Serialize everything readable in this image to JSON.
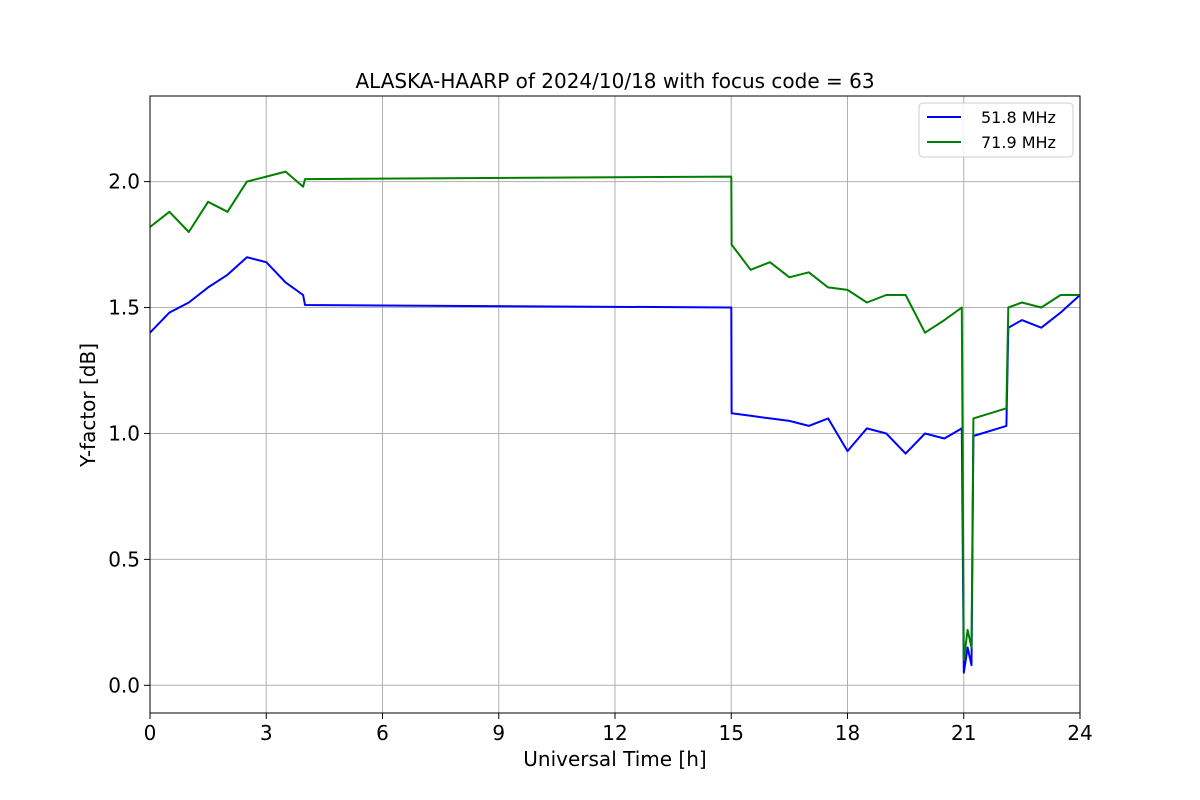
{
  "chart_data": {
    "type": "line",
    "title": "ALASKA-HAARP of 2024/10/18 with focus code = 63",
    "xlabel": "Universal Time [h]",
    "ylabel": "Y-factor [dB]",
    "xlim": [
      0,
      24
    ],
    "ylim": [
      -0.11,
      2.34
    ],
    "xticks": [
      0,
      3,
      6,
      9,
      12,
      15,
      18,
      21,
      24
    ],
    "xtick_labels": [
      "0",
      "3",
      "6",
      "9",
      "12",
      "15",
      "18",
      "21",
      "24"
    ],
    "yticks": [
      0.0,
      0.5,
      1.0,
      1.5,
      2.0
    ],
    "ytick_labels": [
      "0.0",
      "0.5",
      "1.0",
      "1.5",
      "2.0"
    ],
    "grid": true,
    "legend_position": "top-right",
    "series": [
      {
        "name": "51.8 MHz",
        "color": "#0000ff",
        "x": [
          0,
          0.5,
          1.0,
          1.5,
          2.0,
          2.5,
          3.0,
          3.5,
          3.95,
          4.0,
          15.0,
          15.01,
          15.5,
          16.0,
          16.5,
          17.0,
          17.5,
          18.0,
          18.5,
          19.0,
          19.5,
          20.0,
          20.5,
          20.95,
          21.0,
          21.1,
          21.2,
          21.25,
          22.1,
          22.15,
          22.5,
          23.0,
          23.5,
          24.0
        ],
        "values": [
          1.4,
          1.48,
          1.52,
          1.58,
          1.63,
          1.7,
          1.68,
          1.6,
          1.55,
          1.51,
          1.5,
          1.08,
          1.07,
          1.06,
          1.05,
          1.03,
          1.06,
          0.93,
          1.02,
          1.0,
          0.92,
          1.0,
          0.98,
          1.02,
          0.05,
          0.15,
          0.08,
          0.99,
          1.03,
          1.42,
          1.45,
          1.42,
          1.48,
          1.55
        ]
      },
      {
        "name": "71.9 MHz",
        "color": "#008000",
        "x": [
          0,
          0.5,
          1.0,
          1.5,
          2.0,
          2.5,
          3.0,
          3.5,
          3.95,
          4.0,
          15.0,
          15.01,
          15.5,
          16.0,
          16.5,
          17.0,
          17.5,
          18.0,
          18.5,
          19.0,
          19.5,
          20.0,
          20.5,
          20.95,
          21.0,
          21.1,
          21.2,
          21.25,
          22.1,
          22.15,
          22.5,
          23.0,
          23.5,
          24.0
        ],
        "values": [
          1.82,
          1.88,
          1.8,
          1.92,
          1.88,
          2.0,
          2.02,
          2.04,
          1.98,
          2.01,
          2.02,
          1.75,
          1.65,
          1.68,
          1.62,
          1.64,
          1.58,
          1.57,
          1.52,
          1.55,
          1.55,
          1.4,
          1.45,
          1.5,
          0.1,
          0.22,
          0.15,
          1.06,
          1.1,
          1.5,
          1.52,
          1.5,
          1.55,
          1.55
        ]
      }
    ]
  }
}
